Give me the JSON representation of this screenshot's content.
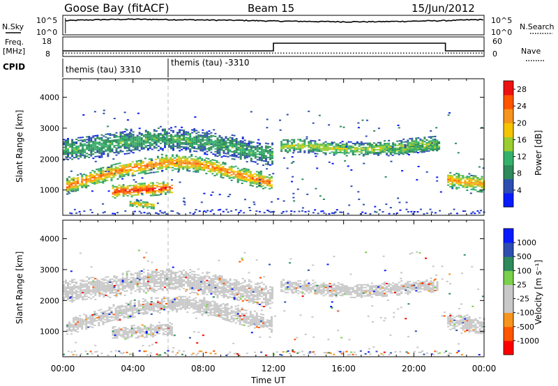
{
  "header": {
    "station": "Goose Bay (fitACF)",
    "beam": "Beam 15",
    "date": "15/Jun/2012"
  },
  "left_labels": {
    "nsky": "N.Sky",
    "freq": "Freq.",
    "mhz": "[MHz]",
    "cpid": "CPID"
  },
  "right_labels": {
    "nsearch": "N.Search",
    "nave": "Nave"
  },
  "cpid_labels": [
    "themis (tau) 3310",
    "themis (tau) -3310"
  ],
  "colors": {
    "power": [
      "#0a1aff",
      "#2f4db0",
      "#2e8a5a",
      "#35b06a",
      "#9acd32",
      "#f5c400",
      "#f7941d",
      "#ff5500",
      "#ee1111"
    ],
    "velocity": [
      "#ff0000",
      "#ff5500",
      "#f7941d",
      "#c8c8c8",
      "#c8c8c8",
      "#7ad04a",
      "#2e8a5a",
      "#2f4db0",
      "#0a1aff"
    ]
  },
  "chart_data": [
    {
      "type": "line",
      "title": "",
      "xlabel": "",
      "series": [
        {
          "name": "N.Sky",
          "x": [
            0,
            2,
            4,
            6,
            8,
            10,
            12,
            14,
            16,
            18,
            20,
            22,
            24
          ],
          "values": [
            10000,
            28000,
            40000,
            30000,
            22000,
            16000,
            9000,
            6500,
            5000,
            5200,
            8000,
            14000,
            30000
          ]
        }
      ],
      "y_ticks": [
        "10^5",
        "10^0"
      ],
      "y2_ticks": [
        "10^5",
        "10^0"
      ],
      "ylim": [
        1,
        100000
      ],
      "log_scale": true
    },
    {
      "type": "line",
      "series": [
        {
          "name": "Freq.",
          "x": [
            0,
            0.2,
            12,
            12,
            21.8,
            21.8,
            24
          ],
          "values": [
            10,
            10,
            10,
            15.5,
            15.5,
            10,
            10
          ]
        },
        {
          "name": "Nave",
          "x": [
            0,
            24
          ],
          "values": [
            5,
            5
          ]
        }
      ],
      "y_ticks": [
        "18",
        "8"
      ],
      "y2_ticks": [
        "60",
        "0"
      ],
      "ylim": [
        8,
        18
      ]
    },
    {
      "type": "heatmap",
      "title": "",
      "xlabel": "",
      "ylabel": "Slant Range [km]",
      "xlim": [
        0,
        24
      ],
      "ylim": [
        180,
        4600
      ],
      "y_ticks": [
        1000,
        2000,
        3000,
        4000
      ],
      "colorbar": {
        "label": "Power [dB]",
        "ticks": [
          4,
          8,
          12,
          16,
          20,
          24,
          28
        ],
        "range": [
          0,
          30
        ]
      },
      "bands": [
        {
          "x": [
            0.2,
            1.0,
            2.0,
            3.0,
            4.0,
            5.0,
            6.0,
            7.0,
            8.0,
            9.0,
            10.0,
            11.0,
            11.9
          ],
          "y": [
            1100,
            1260,
            1420,
            1580,
            1700,
            1790,
            1870,
            1860,
            1780,
            1640,
            1470,
            1330,
            1200
          ],
          "width": 300,
          "peak_db": 24
        },
        {
          "x": [
            2.8,
            3.4,
            4.0,
            4.6,
            5.2,
            5.8,
            6.2
          ],
          "y": [
            920,
            940,
            970,
            990,
            1010,
            1040,
            1060
          ],
          "width": 250,
          "peak_db": 28
        },
        {
          "x": [
            0.0,
            1.0,
            2.0,
            3.0,
            4.0,
            5.0,
            6.0,
            7.0,
            8.0,
            9.0,
            10.0,
            11.0,
            11.9
          ],
          "y": [
            2280,
            2330,
            2400,
            2480,
            2560,
            2620,
            2650,
            2600,
            2520,
            2420,
            2320,
            2200,
            2100
          ],
          "width": 420,
          "peak_db": 12
        },
        {
          "x": [
            12.4,
            13.5,
            14.5,
            15.5,
            16.5,
            17.5,
            18.5,
            19.5,
            20.5,
            21.3
          ],
          "y": [
            2400,
            2420,
            2360,
            2320,
            2290,
            2300,
            2340,
            2390,
            2440,
            2480
          ],
          "width": 260,
          "peak_db": 16
        },
        {
          "x": [
            18.5,
            19.5,
            20.5,
            21.5
          ],
          "y": [
            2220,
            2280,
            2340,
            2400
          ],
          "width": 180,
          "peak_db": 14
        },
        {
          "x": [
            21.9,
            22.5,
            23.0,
            23.6,
            24.0
          ],
          "y": [
            1300,
            1260,
            1220,
            1180,
            1160
          ],
          "width": 300,
          "peak_db": 22
        },
        {
          "x": [
            3.8,
            4.3,
            4.8,
            5.2
          ],
          "y": [
            560,
            520,
            490,
            460
          ],
          "width": 140,
          "peak_db": 20
        }
      ]
    },
    {
      "type": "heatmap",
      "title": "",
      "xlabel": "Time UT",
      "ylabel": "Slant Range [km]",
      "x_ticks": [
        "00:00",
        "04:00",
        "08:00",
        "12:00",
        "16:00",
        "20:00",
        "00:00"
      ],
      "xlim": [
        0,
        24
      ],
      "ylim": [
        180,
        4600
      ],
      "y_ticks": [
        1000,
        2000,
        3000,
        4000
      ],
      "colorbar": {
        "label": "Velocity [m s⁻¹]",
        "ticks": [
          -1000,
          -500,
          -100,
          -25,
          25,
          100,
          500,
          1000
        ]
      },
      "bands": [
        {
          "x": [
            0.2,
            1.0,
            2.0,
            3.0,
            4.0,
            5.0,
            6.0,
            7.0,
            8.0,
            9.0,
            10.0,
            11.0,
            11.9
          ],
          "y": [
            1100,
            1260,
            1420,
            1580,
            1700,
            1790,
            1870,
            1860,
            1780,
            1640,
            1470,
            1330,
            1200
          ],
          "width": 300,
          "velocity": 0
        },
        {
          "x": [
            2.8,
            3.4,
            4.0,
            4.6,
            5.2,
            5.8,
            6.2
          ],
          "y": [
            920,
            940,
            970,
            990,
            1010,
            1040,
            1060
          ],
          "width": 250,
          "velocity": 0
        },
        {
          "x": [
            0.0,
            1.0,
            2.0,
            3.0,
            4.0,
            5.0,
            6.0,
            7.0,
            8.0,
            9.0,
            10.0,
            11.0,
            11.9
          ],
          "y": [
            2280,
            2330,
            2400,
            2480,
            2560,
            2620,
            2650,
            2600,
            2520,
            2420,
            2320,
            2200,
            2100
          ],
          "width": 420,
          "velocity": 0
        },
        {
          "x": [
            12.4,
            13.5,
            14.5,
            15.5,
            16.5,
            17.5,
            18.5,
            19.5,
            20.5,
            21.3
          ],
          "y": [
            2400,
            2420,
            2360,
            2320,
            2290,
            2300,
            2340,
            2390,
            2440,
            2480
          ],
          "width": 260,
          "velocity": 0
        },
        {
          "x": [
            21.9,
            22.5,
            23.0,
            23.6,
            24.0
          ],
          "y": [
            1300,
            1260,
            1220,
            1180,
            1160
          ],
          "width": 300,
          "velocity": 0
        }
      ]
    }
  ]
}
